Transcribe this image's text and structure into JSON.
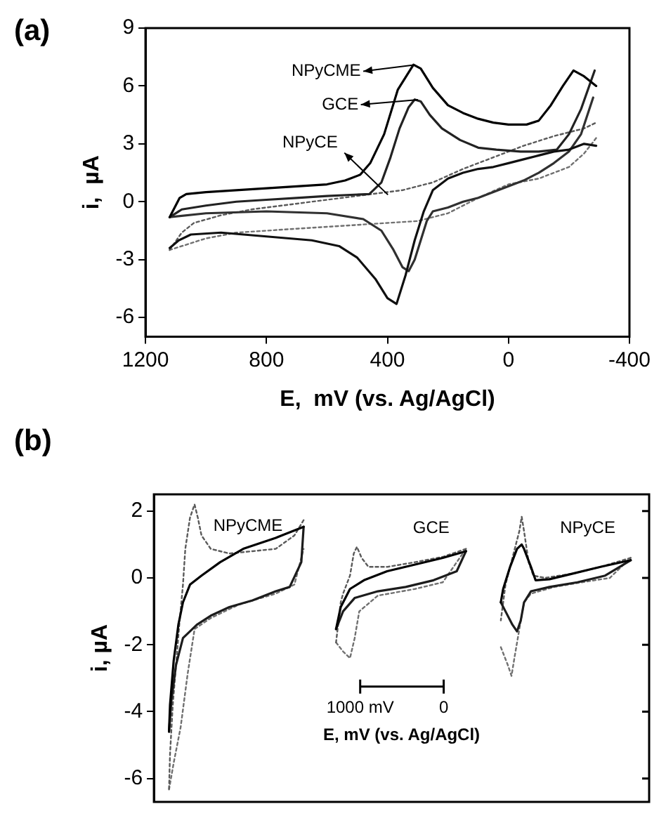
{
  "chart_data": [
    {
      "type": "line",
      "title": "(a)",
      "xlabel": "E,  mV (vs. Ag/AgCl)",
      "ylabel": "i,  µA",
      "xlim": [
        1200,
        -400
      ],
      "ylim": [
        -7,
        9
      ],
      "xticks": [
        1200,
        800,
        400,
        0,
        -400
      ],
      "yticks": [
        -6,
        -3,
        0,
        3,
        6,
        9
      ],
      "grid": false,
      "legend": false,
      "annotations": [
        "NPyCME",
        "GCE",
        "NPyCE"
      ],
      "series": [
        {
          "color": "#000000",
          "line_style": "solid",
          "x": [
            1120,
            1087,
            1065,
            1000,
            900,
            800,
            700,
            600,
            540,
            490,
            457,
            411,
            366,
            314,
            290,
            250,
            200,
            150,
            100,
            50,
            0,
            -60,
            -100,
            -140,
            -180,
            -215,
            -250,
            -290
          ],
          "values": [
            -0.8,
            0.2,
            0.4,
            0.5,
            0.6,
            0.7,
            0.8,
            0.9,
            1.1,
            1.4,
            2.0,
            3.5,
            5.8,
            7.1,
            6.9,
            5.9,
            5.0,
            4.6,
            4.3,
            4.1,
            4.0,
            4.0,
            4.2,
            5.0,
            6.0,
            6.8,
            6.5,
            6.0
          ]
        },
        {
          "color": "#101010",
          "line_style": "solid",
          "x": [
            -290,
            -250,
            -200,
            -150,
            -100,
            -50,
            0,
            50,
            100,
            150,
            200,
            250,
            280,
            310,
            340,
            370,
            400,
            440,
            500,
            560,
            650,
            800,
            950,
            1050,
            1090,
            1120
          ],
          "values": [
            2.9,
            3.0,
            2.7,
            2.6,
            2.4,
            2.2,
            2.0,
            1.8,
            1.7,
            1.5,
            1.2,
            0.6,
            -0.5,
            -2.0,
            -3.8,
            -5.3,
            -5.0,
            -4.0,
            -2.9,
            -2.3,
            -2.0,
            -1.8,
            -1.6,
            -1.7,
            -2.0,
            -2.4
          ]
        },
        {
          "color": "#222222",
          "line_style": "solid",
          "x": [
            1120,
            1080,
            1000,
            900,
            800,
            700,
            600,
            460,
            420,
            390,
            360,
            330,
            310,
            290,
            260,
            220,
            160,
            100,
            40,
            -40,
            -100,
            -160,
            -200,
            -240,
            -285
          ],
          "values": [
            -0.8,
            -0.4,
            -0.2,
            0,
            0.1,
            0.2,
            0.3,
            0.4,
            1.0,
            2.3,
            3.8,
            4.9,
            5.3,
            5.2,
            4.5,
            3.8,
            3.2,
            2.8,
            2.7,
            2.6,
            2.6,
            2.7,
            3.5,
            4.8,
            6.8
          ]
        },
        {
          "color": "#303030",
          "line_style": "solid",
          "x": [
            -280,
            -240,
            -200,
            -150,
            -100,
            -50,
            0,
            50,
            100,
            150,
            200,
            250,
            270,
            290,
            310,
            330,
            350,
            380,
            420,
            480,
            600,
            800,
            1000,
            1120
          ],
          "values": [
            5.4,
            3.5,
            2.6,
            2.0,
            1.5,
            1.1,
            0.8,
            0.5,
            0.2,
            0,
            -0.3,
            -0.5,
            -1.0,
            -2.0,
            -3.0,
            -3.6,
            -3.4,
            -2.5,
            -1.5,
            -0.9,
            -0.6,
            -0.5,
            -0.6,
            -0.8
          ]
        },
        {
          "color": "#5a5a5a",
          "line_style": "dotted",
          "x": [
            1120,
            1080,
            1040,
            950,
            850,
            750,
            650,
            550,
            450,
            350,
            250,
            150,
            50,
            -50,
            -150,
            -250,
            -290
          ],
          "values": [
            -2.5,
            -1.6,
            -1.1,
            -0.7,
            -0.4,
            -0.2,
            0,
            0.2,
            0.4,
            0.6,
            1.0,
            1.7,
            2.3,
            2.9,
            3.4,
            3.8,
            4.1
          ]
        },
        {
          "color": "#707070",
          "line_style": "dotted",
          "x": [
            -290,
            -250,
            -200,
            -100,
            0,
            100,
            200,
            300,
            400,
            500,
            600,
            700,
            800,
            900,
            1000,
            1120
          ],
          "values": [
            3.3,
            2.5,
            1.8,
            1.2,
            0.9,
            0.2,
            -0.6,
            -1.0,
            -1.1,
            -1.2,
            -1.3,
            -1.4,
            -1.5,
            -1.6,
            -1.9,
            -2.5
          ]
        }
      ]
    },
    {
      "type": "line",
      "title": "(b)",
      "xlabel": "E, mV (vs. Ag/AgCl)",
      "ylabel": "i, µA",
      "xlim": [
        3470,
        -2460
      ],
      "ylim": [
        -6.7,
        2.5
      ],
      "xticks": [
        {
          "value": 1000,
          "label": "1000 mV"
        },
        0
      ],
      "yticks": [
        -6,
        -4,
        -2,
        0,
        2
      ],
      "grid": false,
      "legend": false,
      "annotations": [
        "NPyCME",
        "GCE",
        "NPyCE"
      ],
      "series": [
        {
          "color": "#000000",
          "line_style": "solid",
          "x": [
            1677,
            2011,
            2400,
            2677,
            2900,
            3038,
            3122,
            3177,
            3233,
            3277,
            3289
          ],
          "values": [
            1.53,
            1.2,
            0.87,
            0.47,
            0.07,
            -0.2,
            -0.73,
            -1.4,
            -2.47,
            -3.8,
            -4.6
          ]
        },
        {
          "color": "#1c1c1c",
          "line_style": "solid",
          "x": [
            3289,
            3261,
            3205,
            3122,
            2955,
            2789,
            2566,
            2289,
            2011,
            1844,
            1705,
            1677
          ],
          "values": [
            -4.6,
            -3.67,
            -2.6,
            -1.8,
            -1.4,
            -1.13,
            -0.87,
            -0.67,
            -0.4,
            -0.27,
            0.47,
            1.53
          ]
        },
        {
          "color": "#5a5a5a",
          "line_style": "dotted",
          "x": [
            1677,
            1788,
            2011,
            2289,
            2566,
            2789,
            2900,
            2944,
            2983,
            3038,
            3094,
            3122,
            3166,
            3205,
            3244,
            3277,
            3289
          ],
          "values": [
            1.73,
            1.27,
            0.87,
            0.8,
            0.73,
            0.87,
            1.27,
            1.8,
            2.2,
            1.8,
            0.87,
            -0.2,
            -1.4,
            -2.6,
            -3.8,
            -5.27,
            -6.33
          ]
        },
        {
          "color": "#707070",
          "line_style": "dotted",
          "x": [
            3289,
            3233,
            3150,
            3066,
            2983,
            2789,
            2455,
            2011,
            1788,
            1677
          ],
          "values": [
            -6.33,
            -5.53,
            -4.47,
            -2.87,
            -1.53,
            -1.2,
            -0.8,
            -0.47,
            -0.2,
            0.87
          ]
        },
        {
          "color": "#000000",
          "line_style": "solid",
          "x": [
            -267,
            11,
            344,
            678,
            955,
            1122,
            1233,
            1289
          ],
          "values": [
            0.8,
            0.6,
            0.4,
            0.2,
            -0.07,
            -0.33,
            -0.87,
            -1.53
          ]
        },
        {
          "color": "#1c1c1c",
          "line_style": "solid",
          "x": [
            1289,
            1205,
            1066,
            789,
            455,
            122,
            -156,
            -267
          ],
          "values": [
            -1.53,
            -1.0,
            -0.6,
            -0.4,
            -0.27,
            -0.07,
            0.2,
            0.8
          ]
        },
        {
          "color": "#5a5a5a",
          "line_style": "dotted",
          "x": [
            -267,
            11,
            344,
            678,
            900,
            983,
            1039,
            1077,
            1122,
            1205,
            1233,
            1289
          ],
          "values": [
            0.87,
            0.63,
            0.47,
            0.33,
            0.33,
            0.6,
            0.93,
            0.73,
            0.07,
            -0.47,
            -0.73,
            -1.93
          ]
        },
        {
          "color": "#707070",
          "line_style": "dotted",
          "x": [
            1289,
            1205,
            1122,
            1066,
            1011,
            789,
            344,
            11,
            -267
          ],
          "values": [
            -1.93,
            -2.2,
            -2.4,
            -1.8,
            -1.0,
            -0.53,
            -0.33,
            -0.13,
            0.87
          ]
        },
        {
          "color": "#000000",
          "line_style": "solid",
          "x": [
            -2239,
            -1878,
            -1545,
            -1267,
            -1100,
            -1045,
            -962,
            -934,
            -878,
            -795,
            -712,
            -684
          ],
          "values": [
            0.53,
            0.33,
            0.13,
            -0.04,
            -0.07,
            0.33,
            0.87,
            1.0,
            0.87,
            0.33,
            -0.33,
            -0.73
          ]
        },
        {
          "color": "#1c1c1c",
          "line_style": "solid",
          "x": [
            -684,
            -740,
            -823,
            -878,
            -923,
            -962,
            -1045,
            -1267,
            -1601,
            -1934,
            -2239
          ],
          "values": [
            -0.73,
            -1.0,
            -1.4,
            -1.6,
            -1.27,
            -0.73,
            -0.4,
            -0.27,
            -0.13,
            0.07,
            0.53
          ]
        },
        {
          "color": "#5a5a5a",
          "line_style": "dotted",
          "x": [
            -2239,
            -1878,
            -1545,
            -1212,
            -1073,
            -1017,
            -962,
            -934,
            -906,
            -823,
            -740,
            -684
          ],
          "values": [
            0.6,
            0.33,
            0.13,
            0,
            0.07,
            0.47,
            1.4,
            1.83,
            1.4,
            0.6,
            -0.2,
            -1.27
          ]
        },
        {
          "color": "#707070",
          "line_style": "dotted",
          "x": [
            -684,
            -767,
            -812,
            -851,
            -906,
            -962,
            -1045,
            -1323,
            -1656,
            -1989,
            -2239
          ],
          "values": [
            -2.07,
            -2.6,
            -2.93,
            -2.33,
            -1.53,
            -0.73,
            -0.47,
            -0.27,
            -0.13,
            0,
            0.6
          ]
        }
      ]
    }
  ]
}
